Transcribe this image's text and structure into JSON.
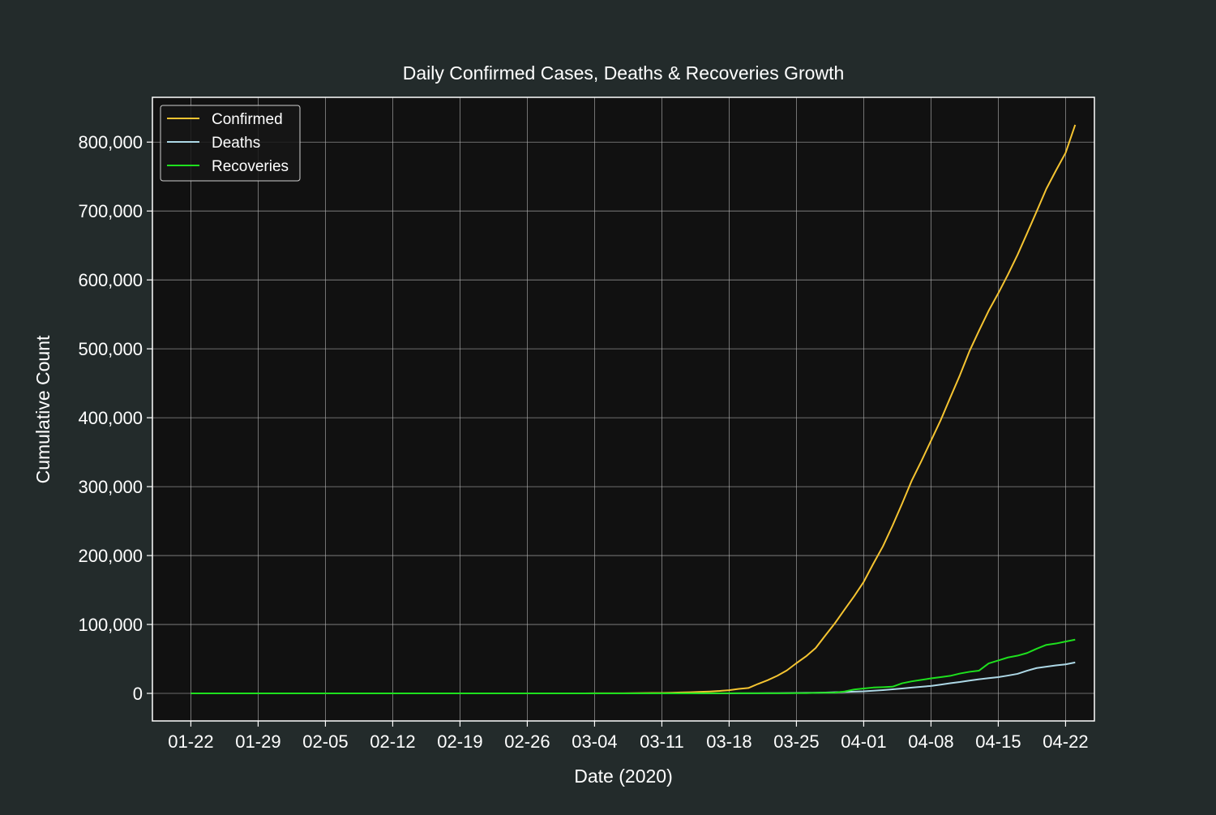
{
  "colors": {
    "background": "#232b2b",
    "plot_background": "#111111",
    "frame": "#ffffff",
    "grid": "#b5b5b5"
  },
  "chart_data": {
    "type": "line",
    "title": "Daily Confirmed Cases, Deaths & Recoveries Growth",
    "xlabel": "Date (2020)",
    "ylabel": "Cumulative Count",
    "x_start": "2020-01-22",
    "x_end": "2020-04-21",
    "xlim": [
      "2020-01-18",
      "2020-04-25"
    ],
    "ylim": [
      -40000,
      865000
    ],
    "x_ticks": [
      "01-22",
      "01-29",
      "02-05",
      "02-12",
      "02-19",
      "02-26",
      "03-04",
      "03-11",
      "03-18",
      "03-25",
      "04-01",
      "04-08",
      "04-15",
      "04-22"
    ],
    "x_tick_dates": [
      "2020-01-22",
      "2020-01-29",
      "2020-02-05",
      "2020-02-12",
      "2020-02-19",
      "2020-02-26",
      "2020-03-04",
      "2020-03-11",
      "2020-03-18",
      "2020-03-25",
      "2020-04-01",
      "2020-04-08",
      "2020-04-15",
      "2020-04-22"
    ],
    "y_ticks": [
      0,
      100000,
      200000,
      300000,
      400000,
      500000,
      600000,
      700000,
      800000
    ],
    "y_tick_labels": [
      "0",
      "100,000",
      "200,000",
      "300,000",
      "400,000",
      "500,000",
      "600,000",
      "700,000",
      "800,000"
    ],
    "grid": true,
    "legend_position": "top-left",
    "series": [
      {
        "name": "Confirmed",
        "color": "#f5c431",
        "values": [
          1,
          1,
          2,
          2,
          5,
          5,
          5,
          5,
          5,
          6,
          8,
          11,
          11,
          11,
          12,
          12,
          12,
          12,
          12,
          13,
          13,
          14,
          14,
          14,
          14,
          14,
          15,
          15,
          15,
          15,
          15,
          15,
          15,
          25,
          35,
          53,
          53,
          59,
          60,
          62,
          70,
          76,
          101,
          122,
          153,
          221,
          278,
          417,
          537,
          605,
          959,
          1281,
          1663,
          2179,
          2726,
          3499,
          4632,
          6421,
          7786,
          13680,
          19101,
          25493,
          33276,
          43847,
          53740,
          65778,
          83836,
          101657,
          121478,
          140886,
          161807,
          188172,
          213372,
          243453,
          275586,
          308850,
          337072,
          366667,
          396223,
          429052,
          461437,
          496535,
          526396,
          555313,
          580619,
          607670,
          636350,
          667801,
          699706,
          732197,
          758809,
          784326,
          825041
        ]
      },
      {
        "name": "Deaths",
        "color": "#add8e6",
        "values": [
          0,
          0,
          0,
          0,
          0,
          0,
          0,
          0,
          0,
          0,
          0,
          0,
          0,
          0,
          0,
          0,
          0,
          0,
          0,
          0,
          0,
          0,
          0,
          0,
          0,
          0,
          0,
          0,
          0,
          0,
          0,
          0,
          0,
          0,
          0,
          0,
          0,
          0,
          0,
          0,
          1,
          1,
          6,
          7,
          11,
          12,
          14,
          17,
          21,
          22,
          28,
          36,
          40,
          47,
          54,
          63,
          85,
          108,
          118,
          200,
          244,
          307,
          427,
          552,
          706,
          942,
          1209,
          1581,
          2026,
          2467,
          2978,
          3873,
          4757,
          5926,
          7087,
          8407,
          9619,
          10783,
          12722,
          14695,
          16478,
          18586,
          20463,
          22020,
          23529,
          25832,
          28325,
          32916,
          36773,
          38664,
          40661,
          42094,
          44845
        ]
      },
      {
        "name": "Recoveries",
        "color": "#1ee01e",
        "values": [
          0,
          0,
          0,
          0,
          0,
          0,
          0,
          0,
          0,
          0,
          0,
          0,
          0,
          0,
          0,
          0,
          0,
          0,
          0,
          0,
          0,
          0,
          0,
          0,
          0,
          0,
          0,
          0,
          0,
          0,
          0,
          0,
          0,
          0,
          0,
          0,
          0,
          0,
          0,
          0,
          0,
          1,
          2,
          4,
          7,
          8,
          8,
          12,
          12,
          17,
          17,
          17,
          17,
          106,
          106,
          108,
          108,
          109,
          115,
          115,
          147,
          176,
          178,
          348,
          361,
          681,
          869,
          1072,
          2665,
          5644,
          7024,
          8474,
          9001,
          9707,
          14652,
          17448,
          19581,
          21763,
          23559,
          25410,
          28790,
          31270,
          32988,
          43482,
          47763,
          52096,
          54703,
          58545,
          64840,
          70337,
          72329,
          75204,
          78000
        ]
      }
    ]
  }
}
